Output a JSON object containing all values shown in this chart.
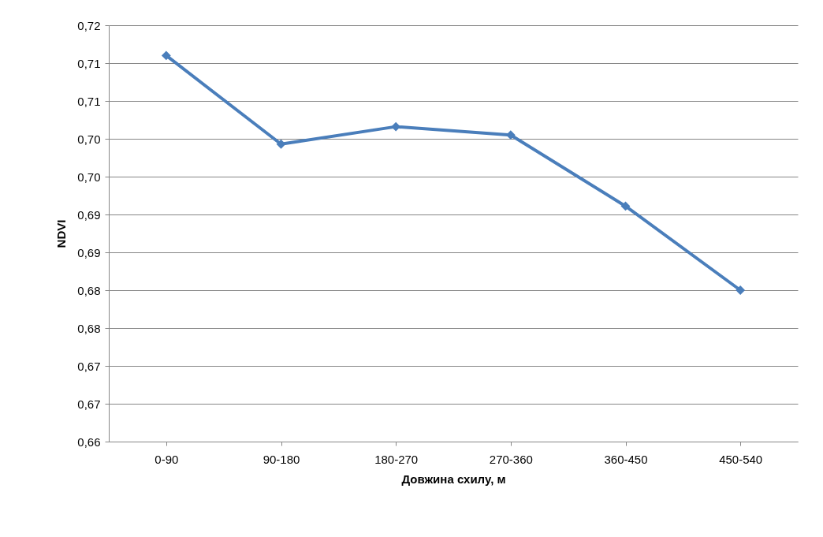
{
  "chart_data": {
    "type": "line",
    "xlabel": "Довжина схилу, м",
    "ylabel": "NDVI",
    "categories": [
      "0-90",
      "90-180",
      "180-270",
      "270-360",
      "360-450",
      "450-540"
    ],
    "series": [
      {
        "color": "#4a7ebb",
        "values": [
          0.711,
          0.6993,
          0.7016,
          0.7005,
          0.6911,
          0.68
        ]
      }
    ],
    "ylim": [
      0.66,
      0.715
    ],
    "yticks": [
      {
        "value": 0.66,
        "label": "0,66"
      },
      {
        "value": 0.665,
        "label": "0,67"
      },
      {
        "value": 0.67,
        "label": "0,67"
      },
      {
        "value": 0.675,
        "label": "0,68"
      },
      {
        "value": 0.68,
        "label": "0,68"
      },
      {
        "value": 0.685,
        "label": "0,69"
      },
      {
        "value": 0.69,
        "label": "0,69"
      },
      {
        "value": 0.695,
        "label": "0,70"
      },
      {
        "value": 0.7,
        "label": "0,70"
      },
      {
        "value": 0.705,
        "label": "0,71"
      },
      {
        "value": 0.71,
        "label": "0,71"
      },
      {
        "value": 0.715,
        "label": "0,72"
      }
    ],
    "grid": "y",
    "marker": "diamond",
    "line_style": "solid"
  }
}
